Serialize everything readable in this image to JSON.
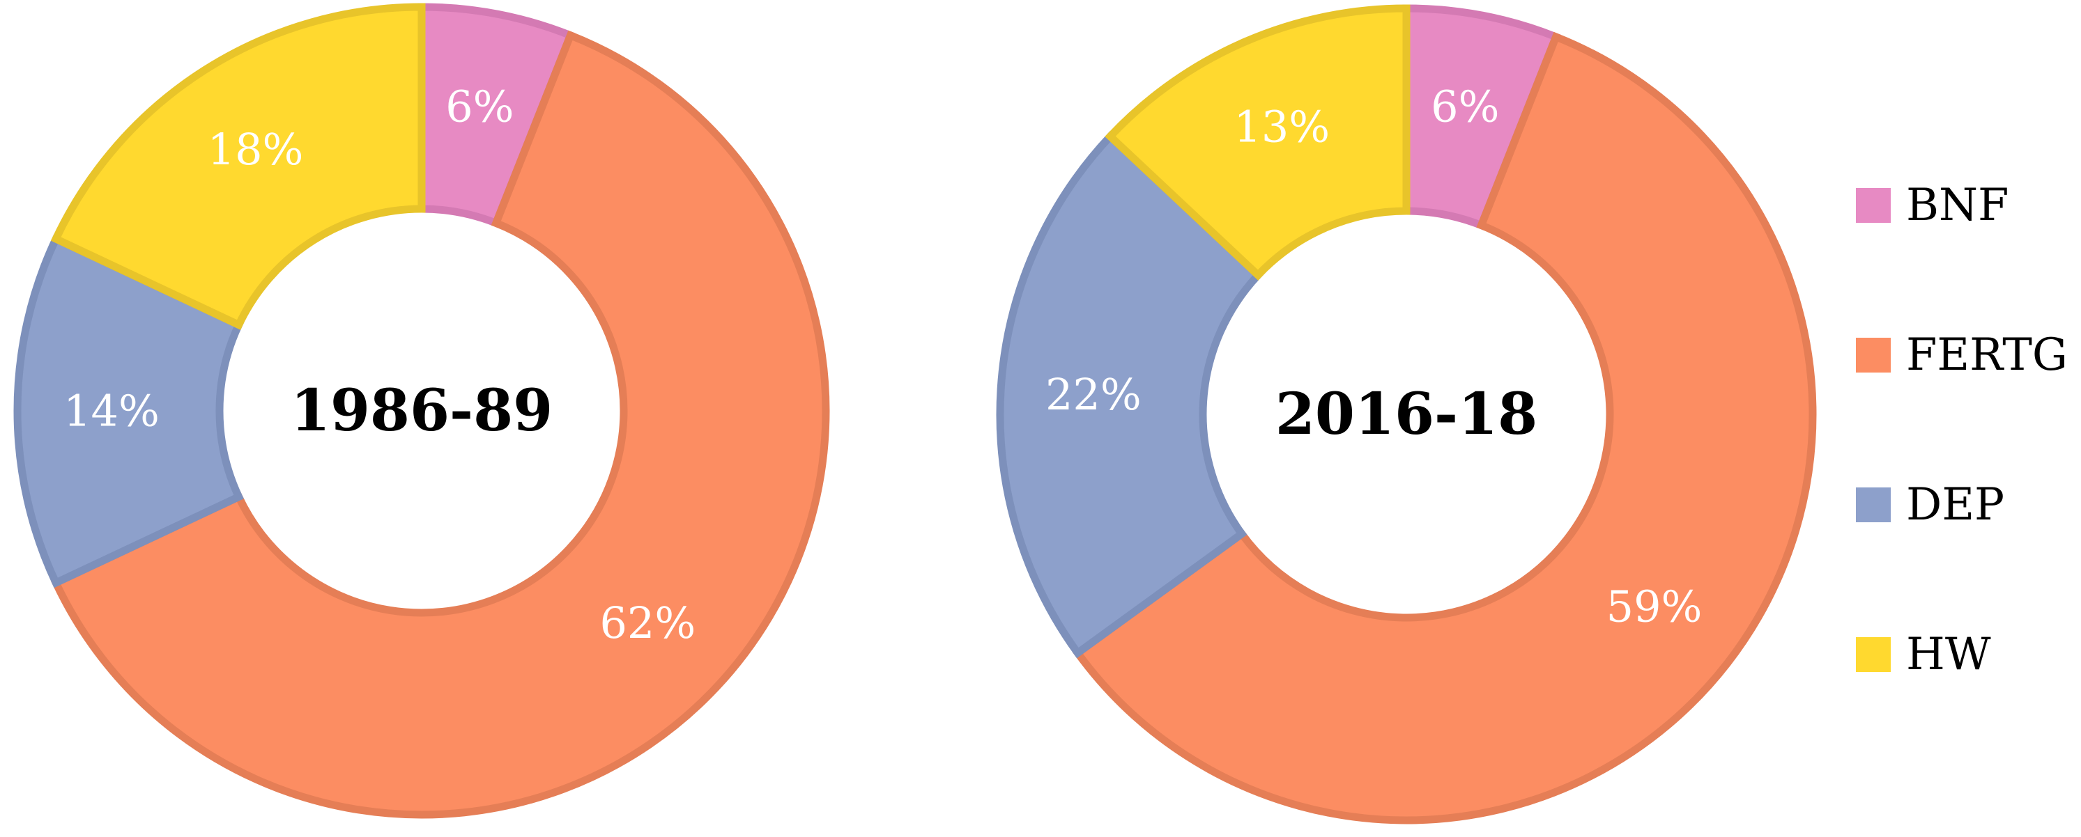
{
  "chart_data": [
    {
      "type": "donut",
      "center_label": "1986-89",
      "categories": [
        "BNF",
        "FERTG",
        "DEP",
        "HW"
      ],
      "values": [
        6,
        62,
        14,
        18
      ],
      "value_labels": [
        "6%",
        "62%",
        "14%",
        "18%"
      ],
      "unit": "%"
    },
    {
      "type": "donut",
      "center_label": "2016-18",
      "categories": [
        "BNF",
        "FERTG",
        "DEP",
        "HW"
      ],
      "values": [
        6,
        59,
        22,
        13
      ],
      "value_labels": [
        "6%",
        "59%",
        "22%",
        "13%"
      ],
      "unit": "%"
    }
  ],
  "legend": {
    "placement": "right",
    "items": [
      {
        "label": "BNF",
        "color": "#E78AC3"
      },
      {
        "label": "FERTG",
        "color": "#FC8D62"
      },
      {
        "label": "DEP",
        "color": "#8DA0CB"
      },
      {
        "label": "HW",
        "color": "#FFD92F"
      }
    ]
  },
  "series_colors": {
    "BNF": {
      "fill": "#E78AC3",
      "stroke": "#D47AB3"
    },
    "FERTG": {
      "fill": "#FC8D62",
      "stroke": "#E57E56"
    },
    "DEP": {
      "fill": "#8DA0CB",
      "stroke": "#7D90BB"
    },
    "HW": {
      "fill": "#FFD92F",
      "stroke": "#E8C42A"
    }
  }
}
